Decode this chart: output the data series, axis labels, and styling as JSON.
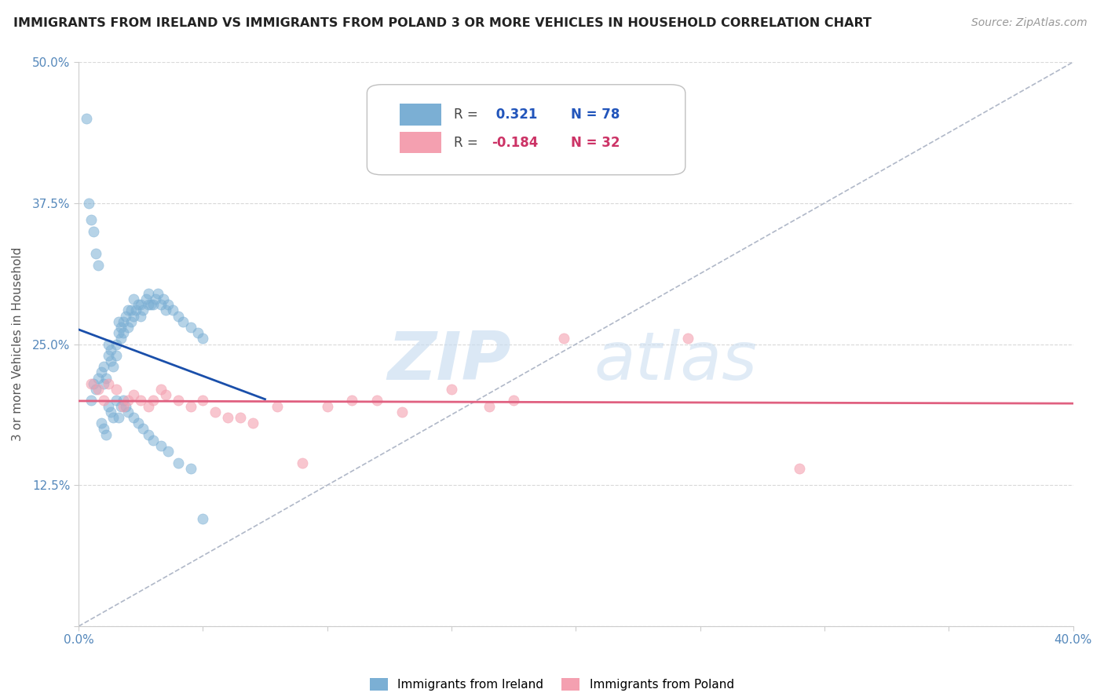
{
  "title": "IMMIGRANTS FROM IRELAND VS IMMIGRANTS FROM POLAND 3 OR MORE VEHICLES IN HOUSEHOLD CORRELATION CHART",
  "source": "Source: ZipAtlas.com",
  "ylabel": "3 or more Vehicles in Household",
  "xlim": [
    0.0,
    0.4
  ],
  "ylim": [
    0.0,
    0.5
  ],
  "xticks": [
    0.0,
    0.05,
    0.1,
    0.15,
    0.2,
    0.25,
    0.3,
    0.35,
    0.4
  ],
  "xticklabels": [
    "0.0%",
    "",
    "",
    "",
    "",
    "",
    "",
    "",
    "40.0%"
  ],
  "yticks": [
    0.0,
    0.125,
    0.25,
    0.375,
    0.5
  ],
  "yticklabels": [
    "",
    "12.5%",
    "25.0%",
    "37.5%",
    "50.0%"
  ],
  "ireland_color": "#7bafd4",
  "poland_color": "#f4a0b0",
  "ireland_line_color": "#1a4faa",
  "poland_line_color": "#e06080",
  "dashed_line_color": "#b0b8c8",
  "background_color": "#ffffff",
  "grid_color": "#d0d0d0",
  "ireland_x": [
    0.005,
    0.006,
    0.007,
    0.008,
    0.009,
    0.01,
    0.01,
    0.011,
    0.012,
    0.012,
    0.013,
    0.013,
    0.014,
    0.015,
    0.015,
    0.016,
    0.016,
    0.017,
    0.017,
    0.018,
    0.018,
    0.019,
    0.02,
    0.02,
    0.021,
    0.021,
    0.022,
    0.022,
    0.023,
    0.024,
    0.025,
    0.025,
    0.026,
    0.027,
    0.028,
    0.028,
    0.029,
    0.03,
    0.031,
    0.032,
    0.033,
    0.034,
    0.035,
    0.036,
    0.038,
    0.04,
    0.042,
    0.045,
    0.048,
    0.05,
    0.003,
    0.004,
    0.005,
    0.006,
    0.007,
    0.008,
    0.009,
    0.01,
    0.011,
    0.012,
    0.013,
    0.014,
    0.015,
    0.016,
    0.017,
    0.018,
    0.019,
    0.02,
    0.022,
    0.024,
    0.026,
    0.028,
    0.03,
    0.033,
    0.036,
    0.04,
    0.045,
    0.05
  ],
  "ireland_y": [
    0.2,
    0.215,
    0.21,
    0.22,
    0.225,
    0.215,
    0.23,
    0.22,
    0.24,
    0.25,
    0.235,
    0.245,
    0.23,
    0.24,
    0.25,
    0.26,
    0.27,
    0.265,
    0.255,
    0.26,
    0.27,
    0.275,
    0.265,
    0.28,
    0.27,
    0.28,
    0.275,
    0.29,
    0.28,
    0.285,
    0.275,
    0.285,
    0.28,
    0.29,
    0.285,
    0.295,
    0.285,
    0.285,
    0.29,
    0.295,
    0.285,
    0.29,
    0.28,
    0.285,
    0.28,
    0.275,
    0.27,
    0.265,
    0.26,
    0.255,
    0.45,
    0.375,
    0.36,
    0.35,
    0.33,
    0.32,
    0.18,
    0.175,
    0.17,
    0.195,
    0.19,
    0.185,
    0.2,
    0.185,
    0.195,
    0.2,
    0.195,
    0.19,
    0.185,
    0.18,
    0.175,
    0.17,
    0.165,
    0.16,
    0.155,
    0.145,
    0.14,
    0.095
  ],
  "poland_x": [
    0.005,
    0.008,
    0.01,
    0.012,
    0.015,
    0.018,
    0.02,
    0.022,
    0.025,
    0.028,
    0.03,
    0.033,
    0.035,
    0.04,
    0.045,
    0.05,
    0.055,
    0.06,
    0.065,
    0.07,
    0.08,
    0.09,
    0.1,
    0.11,
    0.12,
    0.13,
    0.15,
    0.165,
    0.175,
    0.195,
    0.245,
    0.29
  ],
  "poland_y": [
    0.215,
    0.21,
    0.2,
    0.215,
    0.21,
    0.195,
    0.2,
    0.205,
    0.2,
    0.195,
    0.2,
    0.21,
    0.205,
    0.2,
    0.195,
    0.2,
    0.19,
    0.185,
    0.185,
    0.18,
    0.195,
    0.145,
    0.195,
    0.2,
    0.2,
    0.19,
    0.21,
    0.195,
    0.2,
    0.255,
    0.255,
    0.14
  ],
  "watermark_zip_color": "#c5d8ec",
  "watermark_atlas_color": "#c5d8ec"
}
